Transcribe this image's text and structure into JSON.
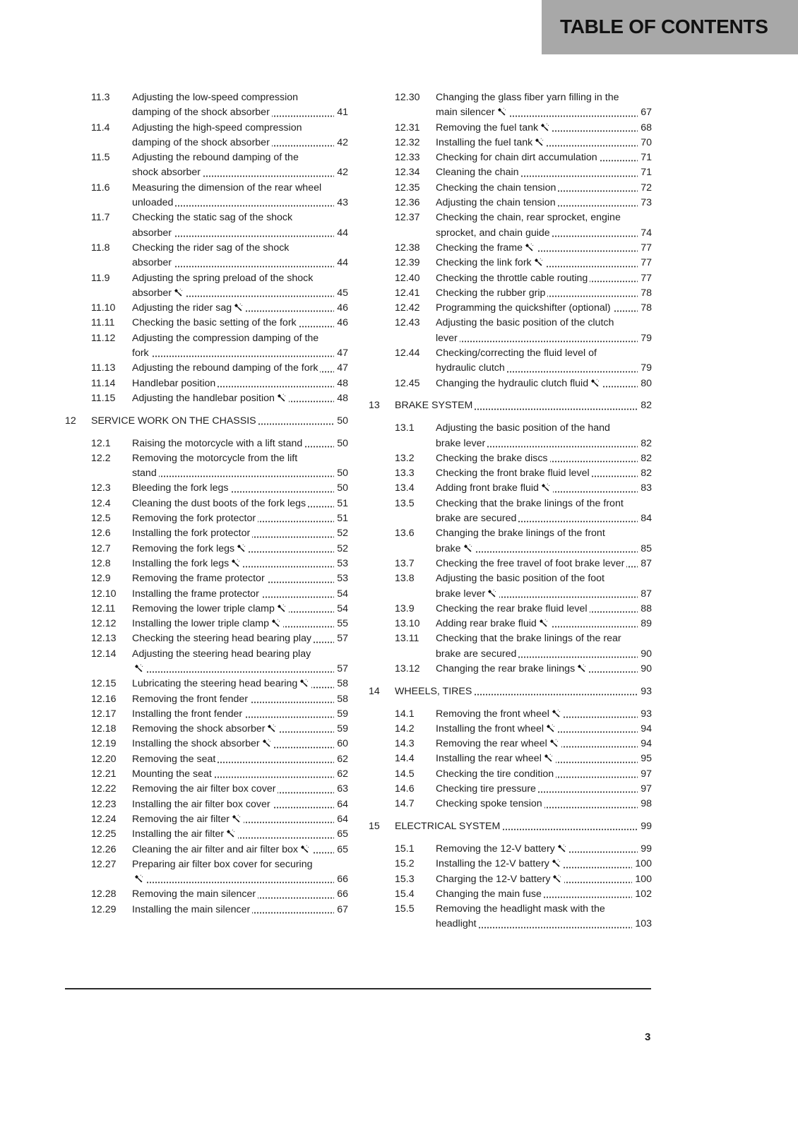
{
  "header": {
    "title": "TABLE OF CONTENTS",
    "background_color": "#a8a8a8"
  },
  "columns": [
    {
      "entries": [
        {
          "num": "11.3",
          "title": "Adjusting the low-speed compression damping of the shock absorber",
          "page": "41"
        },
        {
          "num": "11.4",
          "title": "Adjusting the high-speed compression damping of the shock absorber",
          "page": "42"
        },
        {
          "num": "11.5",
          "title": "Adjusting the rebound damping of the shock absorber",
          "page": "42"
        },
        {
          "num": "11.6",
          "title": "Measuring the dimension of the rear wheel unloaded",
          "page": "43"
        },
        {
          "num": "11.7",
          "title": "Checking the static sag of the shock absorber",
          "page": "44"
        },
        {
          "num": "11.8",
          "title": "Checking the rider sag of the shock absorber",
          "page": "44"
        },
        {
          "num": "11.9",
          "title": "Adjusting the spring preload of the shock absorber",
          "page": "45",
          "tool": true
        },
        {
          "num": "11.10",
          "title": "Adjusting the rider sag",
          "page": "46",
          "tool": true
        },
        {
          "num": "11.11",
          "title": "Checking the basic setting of the fork",
          "page": "46"
        },
        {
          "num": "11.12",
          "title": "Adjusting the compression damping of the fork",
          "page": "47"
        },
        {
          "num": "11.13",
          "title": "Adjusting the rebound damping of the fork",
          "page": "47"
        },
        {
          "num": "11.14",
          "title": "Handlebar position",
          "page": "48"
        },
        {
          "num": "11.15",
          "title": "Adjusting the handlebar position",
          "page": "48",
          "tool": true
        },
        {
          "num": "12",
          "title": "SERVICE WORK ON THE CHASSIS",
          "page": "50",
          "chapter": true
        },
        {
          "num": "12.1",
          "title": "Raising the motorcycle with a lift stand",
          "page": "50"
        },
        {
          "num": "12.2",
          "title": "Removing the motorcycle from the lift stand",
          "page": "50"
        },
        {
          "num": "12.3",
          "title": "Bleeding the fork legs",
          "page": "50"
        },
        {
          "num": "12.4",
          "title": "Cleaning the dust boots of the fork legs",
          "page": "51"
        },
        {
          "num": "12.5",
          "title": "Removing the fork protector",
          "page": "51"
        },
        {
          "num": "12.6",
          "title": "Installing the fork protector",
          "page": "52"
        },
        {
          "num": "12.7",
          "title": "Removing the fork legs",
          "page": "52",
          "tool": true
        },
        {
          "num": "12.8",
          "title": "Installing the fork legs",
          "page": "53",
          "tool": true
        },
        {
          "num": "12.9",
          "title": "Removing the frame protector",
          "page": "53"
        },
        {
          "num": "12.10",
          "title": "Installing the frame protector",
          "page": "54"
        },
        {
          "num": "12.11",
          "title": "Removing the lower triple clamp",
          "page": "54",
          "tool": true
        },
        {
          "num": "12.12",
          "title": "Installing the lower triple clamp",
          "page": "55",
          "tool": true
        },
        {
          "num": "12.13",
          "title": "Checking the steering head bearing play",
          "page": "57"
        },
        {
          "num": "12.14",
          "title": "Adjusting the steering head bearing play",
          "page": "57",
          "tool": true
        },
        {
          "num": "12.15",
          "title": "Lubricating the steering head bearing",
          "page": "58",
          "tool": true
        },
        {
          "num": "12.16",
          "title": "Removing the front fender",
          "page": "58"
        },
        {
          "num": "12.17",
          "title": "Installing the front fender",
          "page": "59"
        },
        {
          "num": "12.18",
          "title": "Removing the shock absorber",
          "page": "59",
          "tool": true
        },
        {
          "num": "12.19",
          "title": "Installing the shock absorber",
          "page": "60",
          "tool": true
        },
        {
          "num": "12.20",
          "title": "Removing the seat",
          "page": "62"
        },
        {
          "num": "12.21",
          "title": "Mounting the seat",
          "page": "62"
        },
        {
          "num": "12.22",
          "title": "Removing the air filter box cover",
          "page": "63"
        },
        {
          "num": "12.23",
          "title": "Installing the air filter box cover",
          "page": "64"
        },
        {
          "num": "12.24",
          "title": "Removing the air filter",
          "page": "64",
          "tool": true
        },
        {
          "num": "12.25",
          "title": "Installing the air filter",
          "page": "65",
          "tool": true
        },
        {
          "num": "12.26",
          "title": "Cleaning the air filter and air filter box",
          "page": "65",
          "tool": true
        },
        {
          "num": "12.27",
          "title": "Preparing air filter box cover for securing",
          "page": "66",
          "tool": true
        },
        {
          "num": "12.28",
          "title": "Removing the main silencer",
          "page": "66"
        },
        {
          "num": "12.29",
          "title": "Installing the main silencer",
          "page": "67"
        }
      ]
    },
    {
      "entries": [
        {
          "num": "12.30",
          "title": "Changing the glass fiber yarn filling in the main silencer",
          "page": "67",
          "tool": true
        },
        {
          "num": "12.31",
          "title": "Removing the fuel tank",
          "page": "68",
          "tool": true
        },
        {
          "num": "12.32",
          "title": "Installing the fuel tank",
          "page": "70",
          "tool": true
        },
        {
          "num": "12.33",
          "title": "Checking for chain dirt accumulation",
          "page": "71"
        },
        {
          "num": "12.34",
          "title": "Cleaning the chain",
          "page": "71"
        },
        {
          "num": "12.35",
          "title": "Checking the chain tension",
          "page": "72"
        },
        {
          "num": "12.36",
          "title": "Adjusting the chain tension",
          "page": "73"
        },
        {
          "num": "12.37",
          "title": "Checking the chain, rear sprocket, engine sprocket, and chain guide",
          "page": "74"
        },
        {
          "num": "12.38",
          "title": "Checking the frame",
          "page": "77",
          "tool": true
        },
        {
          "num": "12.39",
          "title": "Checking the link fork",
          "page": "77",
          "tool": true
        },
        {
          "num": "12.40",
          "title": "Checking the throttle cable routing",
          "page": "77"
        },
        {
          "num": "12.41",
          "title": "Checking the rubber grip",
          "page": "78"
        },
        {
          "num": "12.42",
          "title": "Programming the quickshifter (optional)",
          "page": "78"
        },
        {
          "num": "12.43",
          "title": "Adjusting the basic position of the clutch lever",
          "page": "79"
        },
        {
          "num": "12.44",
          "title": "Checking/correcting the fluid level of hydraulic clutch",
          "page": "79"
        },
        {
          "num": "12.45",
          "title": "Changing the hydraulic clutch fluid",
          "page": "80",
          "tool": true
        },
        {
          "num": "13",
          "title": "BRAKE SYSTEM",
          "page": "82",
          "chapter": true
        },
        {
          "num": "13.1",
          "title": "Adjusting the basic position of the hand brake lever",
          "page": "82"
        },
        {
          "num": "13.2",
          "title": "Checking the brake discs",
          "page": "82"
        },
        {
          "num": "13.3",
          "title": "Checking the front brake fluid level",
          "page": "82"
        },
        {
          "num": "13.4",
          "title": "Adding front brake fluid",
          "page": "83",
          "tool": true
        },
        {
          "num": "13.5",
          "title": "Checking that the brake linings of the front brake are secured",
          "page": "84"
        },
        {
          "num": "13.6",
          "title": "Changing the brake linings of the front brake",
          "page": "85",
          "tool": true
        },
        {
          "num": "13.7",
          "title": "Checking the free travel of foot brake lever",
          "page": "87"
        },
        {
          "num": "13.8",
          "title": "Adjusting the basic position of the foot brake lever",
          "page": "87",
          "tool": true
        },
        {
          "num": "13.9",
          "title": "Checking the rear brake fluid level",
          "page": "88"
        },
        {
          "num": "13.10",
          "title": "Adding rear brake fluid",
          "page": "89",
          "tool": true
        },
        {
          "num": "13.11",
          "title": "Checking that the brake linings of the rear brake are secured",
          "page": "90"
        },
        {
          "num": "13.12",
          "title": "Changing the rear brake linings",
          "page": "90",
          "tool": true
        },
        {
          "num": "14",
          "title": "WHEELS, TIRES",
          "page": "93",
          "chapter": true
        },
        {
          "num": "14.1",
          "title": "Removing the front wheel",
          "page": "93",
          "tool": true
        },
        {
          "num": "14.2",
          "title": "Installing the front wheel",
          "page": "94",
          "tool": true
        },
        {
          "num": "14.3",
          "title": "Removing the rear wheel",
          "page": "94",
          "tool": true
        },
        {
          "num": "14.4",
          "title": "Installing the rear wheel",
          "page": "95",
          "tool": true
        },
        {
          "num": "14.5",
          "title": "Checking the tire condition",
          "page": "97"
        },
        {
          "num": "14.6",
          "title": "Checking tire pressure",
          "page": "97"
        },
        {
          "num": "14.7",
          "title": "Checking spoke tension",
          "page": "98"
        },
        {
          "num": "15",
          "title": "ELECTRICAL SYSTEM",
          "page": "99",
          "chapter": true
        },
        {
          "num": "15.1",
          "title": "Removing the 12-V battery",
          "page": "99",
          "tool": true
        },
        {
          "num": "15.2",
          "title": "Installing the 12-V battery",
          "page": "100",
          "tool": true
        },
        {
          "num": "15.3",
          "title": "Charging the 12-V battery",
          "page": "100",
          "tool": true
        },
        {
          "num": "15.4",
          "title": "Changing the main fuse",
          "page": "102"
        },
        {
          "num": "15.5",
          "title": "Removing the headlight mask with the headlight",
          "page": "103"
        }
      ]
    }
  ],
  "footer": {
    "page_number": "3"
  }
}
